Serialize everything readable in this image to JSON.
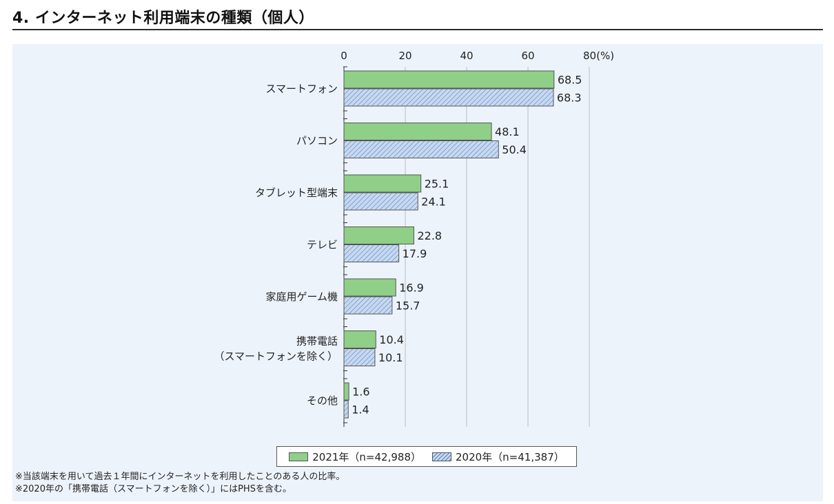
{
  "title": "4. インターネット利用端末の種類（個人）",
  "colors": {
    "series_2021": "#8fcf87",
    "series_2020_fill": "#c6d9f1",
    "series_2020_hatch": "#5a7fb5",
    "panel": "#edf3fb"
  },
  "chart_data": {
    "type": "bar",
    "orientation": "horizontal",
    "categories": [
      "スマートフォン",
      "パソコン",
      "タブレット型端末",
      "テレビ",
      "家庭用ゲーム機",
      "携帯電話\n（スマートフォンを除く）",
      "その他"
    ],
    "series": [
      {
        "name": "2021年（n=42,988）",
        "values": [
          68.5,
          48.1,
          25.1,
          22.8,
          16.9,
          10.4,
          1.6
        ]
      },
      {
        "name": "2020年（n=41,387）",
        "values": [
          68.3,
          50.4,
          24.1,
          17.9,
          15.7,
          10.1,
          1.4
        ]
      }
    ],
    "xlim": [
      0,
      80
    ],
    "xticks": [
      "0",
      "20",
      "40",
      "60",
      "80(%)"
    ],
    "grid": true,
    "legend_position": "bottom"
  },
  "legend": {
    "item_2021": "2021年（n=42,988）",
    "item_2020": "2020年（n=41,387）"
  },
  "notes": [
    "※当該端末を用いて過去１年間にインターネットを利用したことのある人の比率。",
    "※2020年の「携帯電話（スマートフォンを除く）」にはPHSを含む。"
  ]
}
